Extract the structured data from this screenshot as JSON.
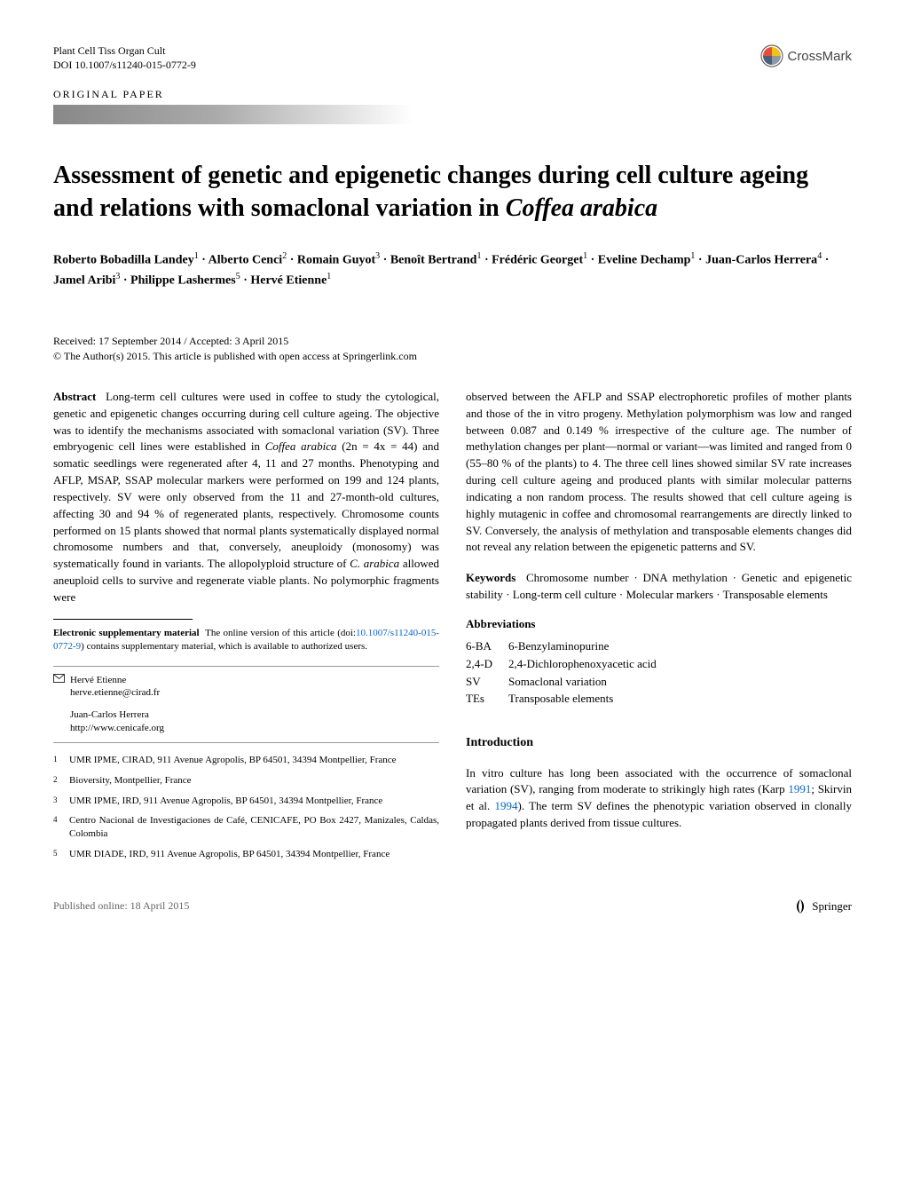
{
  "header": {
    "journal": "Plant Cell Tiss Organ Cult",
    "doi_line": "DOI 10.1007/s11240-015-0772-9",
    "crossmark_label": "CrossMark",
    "article_type": "ORIGINAL PAPER"
  },
  "title": "Assessment of genetic and epigenetic changes during cell culture ageing and relations with somaclonal variation in Coffea arabica",
  "authors_html": "Roberto Bobadilla Landey<sup>1</sup> · Alberto Cenci<sup>2</sup> · Romain Guyot<sup>3</sup> · Benoît Bertrand<sup>1</sup> · Frédéric Georget<sup>1</sup> · Eveline Dechamp<sup>1</sup> · Juan-Carlos Herrera<sup>4</sup> · Jamel Aribi<sup>3</sup> · Philippe Lashermes<sup>5</sup> · Hervé Etienne<sup>1</sup>",
  "dates": {
    "line1": "Received: 17 September 2014 / Accepted: 3 April 2015",
    "line2": "© The Author(s) 2015. This article is published with open access at Springerlink.com"
  },
  "abstract": {
    "label": "Abstract",
    "text": "Long-term cell cultures were used in coffee to study the cytological, genetic and epigenetic changes occurring during cell culture ageing. The objective was to identify the mechanisms associated with somaclonal variation (SV). Three embryogenic cell lines were established in Coffea arabica (2n = 4x = 44) and somatic seedlings were regenerated after 4, 11 and 27 months. Phenotyping and AFLP, MSAP, SSAP molecular markers were performed on 199 and 124 plants, respectively. SV were only observed from the 11 and 27-month-old cultures, affecting 30 and 94 % of regenerated plants, respectively. Chromosome counts performed on 15 plants showed that normal plants systematically displayed normal chromosome numbers and that, conversely, aneuploidy (monosomy) was systematically found in variants. The allopolyploid structure of C. arabica allowed aneuploid cells to survive and regenerate viable plants. No polymorphic fragments were"
  },
  "abstract_right": "observed between the AFLP and SSAP electrophoretic profiles of mother plants and those of the in vitro progeny. Methylation polymorphism was low and ranged between 0.087 and 0.149 % irrespective of the culture age. The number of methylation changes per plant—normal or variant—was limited and ranged from 0 (55–80 % of the plants) to 4. The three cell lines showed similar SV rate increases during cell culture ageing and produced plants with similar molecular patterns indicating a non random process. The results showed that cell culture ageing is highly mutagenic in coffee and chromosomal rearrangements are directly linked to SV. Conversely, the analysis of methylation and transposable elements changes did not reveal any relation between the epigenetic patterns and SV.",
  "keywords": {
    "label": "Keywords",
    "text": "Chromosome number · DNA methylation · Genetic and epigenetic stability · Long-term cell culture · Molecular markers · Transposable elements"
  },
  "abbreviations": {
    "heading": "Abbreviations",
    "items": [
      {
        "key": "6-BA",
        "val": "6-Benzylaminopurine"
      },
      {
        "key": "2,4-D",
        "val": "2,4-Dichlorophenoxyacetic acid"
      },
      {
        "key": "SV",
        "val": "Somaclonal variation"
      },
      {
        "key": "TEs",
        "val": "Transposable elements"
      }
    ]
  },
  "supplementary": {
    "label": "Electronic supplementary material",
    "text_before": "The online version of this article (doi:",
    "doi": "10.1007/s11240-015-0772-9",
    "text_after": ") contains supplementary material, which is available to authorized users."
  },
  "correspondence": [
    {
      "name": "Hervé Etienne",
      "contact": "herve.etienne@cirad.fr",
      "icon": true
    },
    {
      "name": "Juan-Carlos Herrera",
      "contact": "http://www.cenicafe.org",
      "icon": false
    }
  ],
  "affiliations": [
    {
      "num": "1",
      "text": "UMR IPME, CIRAD, 911 Avenue Agropolis, BP 64501, 34394 Montpellier, France"
    },
    {
      "num": "2",
      "text": "Bioversity, Montpellier, France"
    },
    {
      "num": "3",
      "text": "UMR IPME, IRD, 911 Avenue Agropolis, BP 64501, 34394 Montpellier, France"
    },
    {
      "num": "4",
      "text": "Centro Nacional de Investigaciones de Café, CENICAFE, PO Box 2427, Manizales, Caldas, Colombia"
    },
    {
      "num": "5",
      "text": "UMR DIADE, IRD, 911 Avenue Agropolis, BP 64501, 34394 Montpellier, France"
    }
  ],
  "introduction": {
    "heading": "Introduction",
    "text_before": "In vitro culture has long been associated with the occurrence of somaclonal variation (SV), ranging from moderate to strikingly high rates (Karp ",
    "ref1": "1991",
    "mid": "; Skirvin et al. ",
    "ref2": "1994",
    "text_after": "). The term SV defines the phenotypic variation observed in clonally propagated plants derived from tissue cultures."
  },
  "footer": {
    "published": "Published online: 18 April 2015",
    "publisher": "Springer"
  },
  "colors": {
    "link": "#0066cc",
    "grey_muted": "#666666",
    "crossmark_quad": [
      "#e74c3c",
      "#f1c40f",
      "#4a5f7a",
      "#8b9aa8"
    ]
  }
}
